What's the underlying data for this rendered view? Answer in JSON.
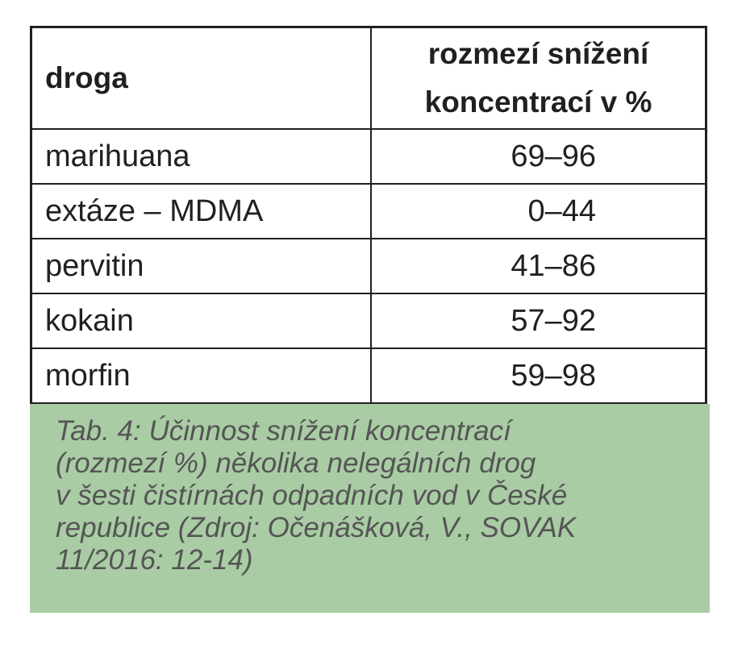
{
  "table": {
    "header": [
      "droga",
      [
        "rozmezí snížení",
        "koncentrací v %"
      ]
    ],
    "rows": [
      [
        "marihuana",
        "69–96"
      ],
      [
        "extáze – MDMA",
        "0–44"
      ],
      [
        "pervitin",
        "41–86"
      ],
      [
        "kokain",
        "57–92"
      ],
      [
        "morfin",
        "59–98"
      ]
    ]
  },
  "caption": [
    "Tab. 4: Účinnost snížení koncentrací",
    "(rozmezí %) několika nelegálních drog",
    "v šesti čistírnách odpadních vod v České",
    "republice (Zdroj: Očenášková, V., SOVAK",
    "11/2016: 12-14)"
  ]
}
